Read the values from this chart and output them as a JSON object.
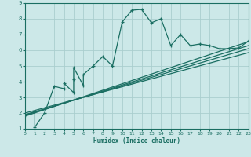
{
  "xlabel": "Humidex (Indice chaleur)",
  "ylabel": "",
  "bg_color": "#cce8e8",
  "grid_color": "#aacece",
  "line_color": "#1a6e62",
  "xlim": [
    0,
    23
  ],
  "ylim": [
    1,
    9
  ],
  "yticks": [
    1,
    2,
    3,
    4,
    5,
    6,
    7,
    8,
    9
  ],
  "xticks": [
    0,
    1,
    2,
    3,
    4,
    5,
    6,
    7,
    8,
    9,
    10,
    11,
    12,
    13,
    14,
    15,
    16,
    17,
    18,
    19,
    20,
    21,
    22,
    23
  ],
  "series": [
    [
      0,
      1.85
    ],
    [
      1,
      2.1
    ],
    [
      1,
      1.1
    ],
    [
      2,
      2.0
    ],
    [
      3,
      3.7
    ],
    [
      4,
      3.55
    ],
    [
      4,
      3.9
    ],
    [
      5,
      3.3
    ],
    [
      5,
      4.15
    ],
    [
      5,
      4.9
    ],
    [
      6,
      3.75
    ],
    [
      6,
      4.45
    ],
    [
      7,
      5.0
    ],
    [
      8,
      5.6
    ],
    [
      9,
      5.0
    ],
    [
      10,
      7.8
    ],
    [
      11,
      8.55
    ],
    [
      12,
      8.6
    ],
    [
      13,
      7.75
    ],
    [
      14,
      8.0
    ],
    [
      15,
      6.3
    ],
    [
      16,
      7.0
    ],
    [
      17,
      6.3
    ],
    [
      18,
      6.4
    ],
    [
      19,
      6.3
    ],
    [
      20,
      6.1
    ],
    [
      21,
      6.1
    ],
    [
      22,
      6.15
    ],
    [
      23,
      6.6
    ]
  ],
  "linear_lines": [
    {
      "x": [
        0,
        23
      ],
      "y": [
        1.8,
        6.55
      ]
    },
    {
      "x": [
        0,
        23
      ],
      "y": [
        1.85,
        6.3
      ]
    },
    {
      "x": [
        0,
        23
      ],
      "y": [
        1.9,
        6.1
      ]
    },
    {
      "x": [
        0,
        23
      ],
      "y": [
        2.0,
        5.85
      ]
    }
  ]
}
